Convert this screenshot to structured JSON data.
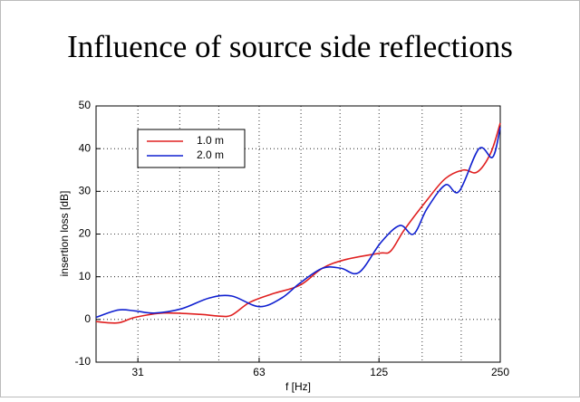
{
  "chart_data": {
    "type": "line",
    "title": "Influence of source side reflections",
    "x_label": "f [Hz]",
    "y_label": "insertion loss [dB]",
    "xscale": "log",
    "xlim": [
      24.8,
      250
    ],
    "xticks": [
      {
        "value": 31.5,
        "label": "31"
      },
      63,
      125,
      250
    ],
    "xminor": [
      40,
      50,
      80,
      100,
      160,
      200
    ],
    "ylim": [
      -10,
      50
    ],
    "yticks": [
      -10,
      0,
      10,
      20,
      30,
      40,
      50
    ],
    "grid": true,
    "legend": "upper left",
    "series": [
      {
        "name": "1.0 m",
        "color": "#e02020",
        "x": [
          24.8,
          28.1,
          31,
          36.5,
          44.9,
          49.8,
          53.8,
          59.7,
          68,
          79.5,
          90.5,
          103,
          125,
          133.6,
          144.5,
          164.6,
          182.7,
          202.6,
          219,
          236.8,
          250
        ],
        "values": [
          -0.5,
          -0.8,
          0.5,
          1.5,
          1.2,
          0.8,
          1.0,
          4,
          6,
          8,
          12,
          14,
          15.5,
          16,
          21,
          28,
          33,
          35,
          34.5,
          39,
          46
        ]
      },
      {
        "name": "2.0 m",
        "color": "#1020d0",
        "x": [
          24.8,
          28.1,
          31,
          34.6,
          40.4,
          47.3,
          53.8,
          63,
          71.6,
          79.5,
          90.5,
          100.5,
          111.5,
          126.3,
          140.8,
          152.3,
          164.6,
          182.7,
          197.6,
          221.4,
          239.4,
          250
        ],
        "values": [
          0.5,
          2.2,
          2.0,
          1.5,
          2.5,
          5,
          5.5,
          3,
          5,
          8.5,
          12,
          12,
          11,
          18,
          22,
          20,
          26,
          31.5,
          30,
          40,
          38,
          45
        ]
      }
    ]
  }
}
